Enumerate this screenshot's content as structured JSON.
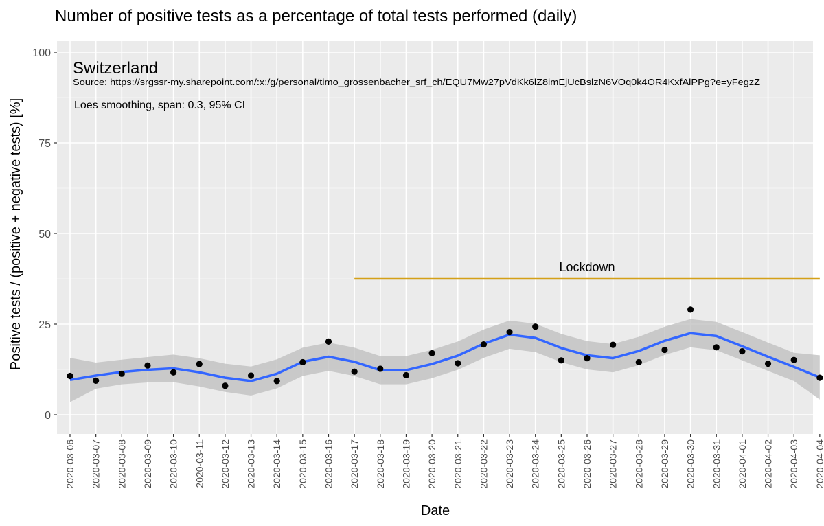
{
  "colors": {
    "panel": "#ebebeb",
    "grid_major": "#ffffff",
    "grid_minor": "#f5f5f5",
    "smooth_line": "#3366ff",
    "ci_band": "#bdbdbd",
    "points": "#000000",
    "lockdown": "#d4a017"
  },
  "chart_data": {
    "type": "scatter",
    "title": "Number of positive tests as a percentage of total tests performed (daily)",
    "xlabel": "Date",
    "ylabel": "Positive tests / (positive + negative tests) [%]",
    "ylim": [
      0,
      100
    ],
    "yticks": [
      0,
      25,
      50,
      75,
      100
    ],
    "ytick_labels": [
      "0",
      "25",
      "50",
      "75",
      "100"
    ],
    "grid": true,
    "x": [
      "2020-03-06",
      "2020-03-07",
      "2020-03-08",
      "2020-03-09",
      "2020-03-10",
      "2020-03-11",
      "2020-03-12",
      "2020-03-13",
      "2020-03-14",
      "2020-03-15",
      "2020-03-16",
      "2020-03-17",
      "2020-03-18",
      "2020-03-19",
      "2020-03-20",
      "2020-03-21",
      "2020-03-22",
      "2020-03-23",
      "2020-03-24",
      "2020-03-25",
      "2020-03-26",
      "2020-03-27",
      "2020-03-28",
      "2020-03-29",
      "2020-03-30",
      "2020-03-31",
      "2020-04-01",
      "2020-04-02",
      "2020-04-03",
      "2020-04-04"
    ],
    "points": [
      10.7,
      9.4,
      11.3,
      13.6,
      11.7,
      14.0,
      8.0,
      10.8,
      9.3,
      14.5,
      20.2,
      11.9,
      12.7,
      10.9,
      17.0,
      14.2,
      19.4,
      22.8,
      24.3,
      15.0,
      15.6,
      19.3,
      14.5,
      17.9,
      29.0,
      18.6,
      17.5,
      14.1,
      15.1,
      10.2
    ],
    "smooth": [
      9.6,
      10.8,
      11.8,
      12.4,
      12.8,
      11.7,
      10.2,
      9.3,
      11.3,
      14.6,
      16.0,
      14.6,
      12.3,
      12.3,
      14.0,
      16.3,
      19.6,
      22.1,
      21.2,
      18.4,
      16.4,
      15.6,
      17.6,
      20.4,
      22.5,
      21.7,
      18.9,
      16.0,
      13.2,
      10.3
    ],
    "ci_low": [
      3.5,
      7.2,
      8.4,
      8.9,
      9.0,
      7.8,
      6.3,
      5.3,
      7.3,
      10.7,
      12.1,
      10.7,
      8.4,
      8.4,
      10.1,
      12.4,
      15.7,
      18.2,
      17.3,
      14.5,
      12.5,
      11.7,
      13.7,
      16.5,
      18.6,
      17.8,
      15.0,
      12.1,
      9.3,
      4.2
    ],
    "ci_high": [
      15.7,
      14.4,
      15.2,
      15.9,
      16.6,
      15.6,
      14.1,
      13.3,
      15.3,
      18.5,
      19.9,
      18.5,
      16.2,
      16.2,
      17.9,
      20.2,
      23.5,
      26.0,
      25.1,
      22.3,
      20.3,
      19.5,
      21.5,
      24.3,
      26.4,
      25.6,
      22.8,
      19.9,
      17.1,
      16.4
    ],
    "annotations": {
      "country": "Switzerland",
      "source": "Source: https://srgssr-my.sharepoint.com/:x:/g/personal/timo_grossenbacher_srf_ch/EQU7Mw27pVdKk6lZ8imEjUcBslzN6VOq0k4OR4KxfAlPPg?e=yFegzZ",
      "smoothing": "Loes smoothing, span: 0.3, 95% CI",
      "lockdown_label": "Lockdown",
      "lockdown_start": "2020-03-17",
      "lockdown_end": "2020-04-04",
      "lockdown_y": 37.5
    }
  }
}
